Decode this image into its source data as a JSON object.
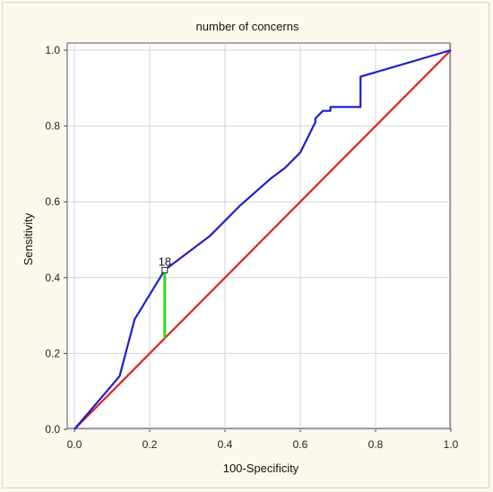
{
  "chart_data": {
    "type": "line",
    "title": "number of concerns",
    "xlabel": "100-Specificity",
    "ylabel": "Sensitivity",
    "xlim": [
      0,
      1
    ],
    "ylim": [
      0,
      1
    ],
    "x_ticks": [
      "0.0",
      "0.2",
      "0.4",
      "0.6",
      "0.8",
      "1.0"
    ],
    "y_ticks": [
      "0.0",
      "0.2",
      "0.4",
      "0.6",
      "0.8",
      "1.0"
    ],
    "grid": true,
    "series": [
      {
        "color": "#1f1fc8",
        "x": [
          0.0,
          0.12,
          0.16,
          0.24,
          0.36,
          0.44,
          0.52,
          0.56,
          0.6,
          0.64,
          0.64,
          0.66,
          0.68,
          0.68,
          0.76,
          0.76,
          1.0
        ],
        "y": [
          0.0,
          0.14,
          0.29,
          0.42,
          0.51,
          0.59,
          0.66,
          0.69,
          0.73,
          0.81,
          0.82,
          0.84,
          0.84,
          0.85,
          0.85,
          0.93,
          1.0
        ]
      },
      {
        "color": "#e02020",
        "x": [
          0.0,
          1.0
        ],
        "y": [
          0.0,
          1.0
        ]
      }
    ],
    "cutoff": {
      "label": "18",
      "x": 0.24,
      "y": 0.42,
      "ref_y": 0.24,
      "color": "#22dd22"
    }
  }
}
